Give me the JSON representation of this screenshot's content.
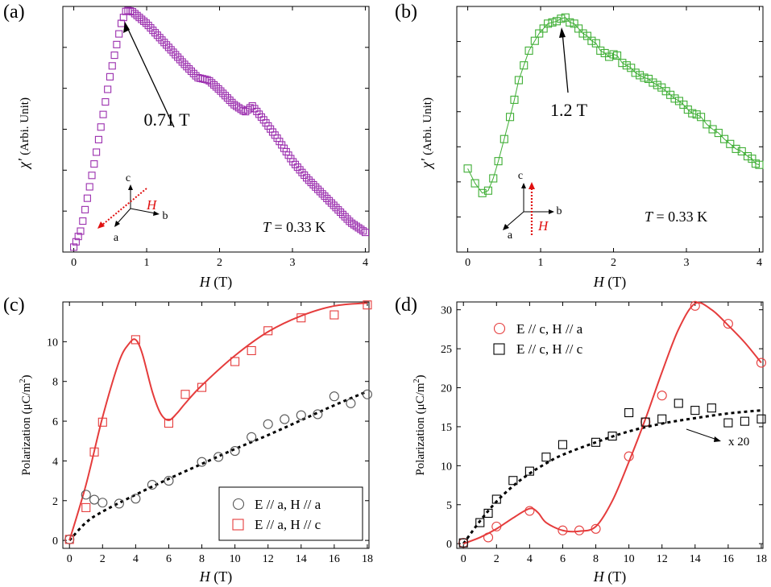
{
  "colors": {
    "purple": "#9b2fae",
    "green": "#3fae35",
    "red": "#e53c3c",
    "black": "#000000",
    "arrow_red": "#e01010"
  },
  "chart_data": [
    {
      "panel": "(a)",
      "type": "scatter",
      "xlabel_letter": "H",
      "xlabel_unit": "(T)",
      "ylabel_sym": "χ'",
      "ylabel_rest": "(Arbi. Unit)",
      "xlim": [
        -0.15,
        4.05
      ],
      "ylim": [
        0.0,
        1.0
      ],
      "xticks": [
        0,
        1,
        2,
        3,
        4
      ],
      "xticklabels": [
        "0",
        "1",
        "2",
        "3",
        "4"
      ],
      "annotation": "0.71 T",
      "temperature_label": "T",
      "temperature_value": "= 0.33 K",
      "axes_labels": {
        "c": "c",
        "b": "b",
        "a": "a",
        "field": "H"
      },
      "color": "#9b2fae",
      "series": {
        "name": "χ'",
        "x_start": 0.0,
        "x_end": 4.0,
        "n_points": 130,
        "curve_x": [
          0.0,
          0.1,
          0.3,
          0.5,
          0.65,
          0.72,
          0.8,
          1.0,
          1.25,
          1.5,
          1.7,
          1.85,
          2.0,
          2.2,
          2.35,
          2.45,
          2.6,
          2.8,
          3.0,
          3.2,
          3.5,
          3.8,
          4.0
        ],
        "curve_y": [
          0.02,
          0.09,
          0.39,
          0.72,
          0.93,
          0.985,
          0.98,
          0.93,
          0.85,
          0.77,
          0.71,
          0.7,
          0.66,
          0.6,
          0.57,
          0.595,
          0.54,
          0.46,
          0.37,
          0.3,
          0.21,
          0.12,
          0.08
        ]
      }
    },
    {
      "panel": "(b)",
      "type": "line",
      "xlabel_letter": "H",
      "xlabel_unit": "(T)",
      "ylabel_sym": "χ'",
      "ylabel_rest": "(Arbi. Unit)",
      "xlim": [
        -0.15,
        4.05
      ],
      "ylim": [
        0.0,
        1.0
      ],
      "xticks": [
        0,
        1,
        2,
        3,
        4
      ],
      "xticklabels": [
        "0",
        "1",
        "2",
        "3",
        "4"
      ],
      "annotation": "1.2 T",
      "temperature_label": "T",
      "temperature_value": "= 0.33 K",
      "axes_labels": {
        "c": "c",
        "b": "b",
        "a": "a",
        "field": "H"
      },
      "color": "#3fae35",
      "series": {
        "name": "χ'",
        "x": [
          0.0,
          0.1,
          0.2,
          0.28,
          0.35,
          0.42,
          0.5,
          0.58,
          0.64,
          0.7,
          0.77,
          0.84,
          0.92,
          0.98,
          1.04,
          1.1,
          1.16,
          1.22,
          1.28,
          1.34,
          1.4,
          1.46,
          1.52,
          1.58,
          1.64,
          1.7,
          1.76,
          1.82,
          1.88,
          1.94,
          2.0,
          2.05,
          2.12,
          2.18,
          2.24,
          2.3,
          2.36,
          2.42,
          2.48,
          2.54,
          2.6,
          2.66,
          2.72,
          2.78,
          2.84,
          2.9,
          2.96,
          3.02,
          3.08,
          3.14,
          3.2,
          3.28,
          3.36,
          3.44,
          3.52,
          3.6,
          3.68,
          3.76,
          3.84,
          3.9,
          3.95,
          4.0
        ],
        "y": [
          0.34,
          0.28,
          0.24,
          0.25,
          0.3,
          0.37,
          0.46,
          0.55,
          0.62,
          0.7,
          0.76,
          0.82,
          0.86,
          0.89,
          0.91,
          0.93,
          0.935,
          0.94,
          0.95,
          0.955,
          0.935,
          0.93,
          0.91,
          0.89,
          0.88,
          0.86,
          0.85,
          0.82,
          0.81,
          0.795,
          0.805,
          0.8,
          0.77,
          0.76,
          0.75,
          0.73,
          0.72,
          0.71,
          0.705,
          0.69,
          0.68,
          0.67,
          0.655,
          0.64,
          0.625,
          0.615,
          0.6,
          0.58,
          0.565,
          0.56,
          0.55,
          0.52,
          0.5,
          0.485,
          0.46,
          0.44,
          0.42,
          0.41,
          0.39,
          0.38,
          0.36,
          0.355
        ]
      }
    },
    {
      "panel": "(c)",
      "type": "scatter",
      "xlabel_letter": "H",
      "xlabel_unit": "(T)",
      "ylabel": "Polarization (μC/m",
      "xlim": [
        -0.4,
        18.1
      ],
      "ylim": [
        -0.4,
        12.0
      ],
      "xticks": [
        0,
        2,
        4,
        6,
        8,
        10,
        12,
        14,
        16,
        18
      ],
      "xticklabels": [
        "0",
        "2",
        "4",
        "6",
        "8",
        "10",
        "12",
        "14",
        "16",
        "18"
      ],
      "yticks": [
        0,
        2,
        4,
        6,
        8,
        10
      ],
      "yticklabels": [
        "0",
        "2",
        "4",
        "6",
        "8",
        "10"
      ],
      "legend_position": "bottom-right",
      "series": [
        {
          "name": "E // a, H // a",
          "marker": "circle",
          "color": "#555555",
          "x": [
            0,
            1,
            1.5,
            2,
            3,
            4,
            5,
            6,
            8,
            9,
            10,
            11,
            12,
            13,
            14,
            15,
            16,
            17,
            18
          ],
          "y": [
            0.05,
            2.3,
            2.05,
            1.9,
            1.85,
            2.1,
            2.8,
            3.0,
            3.95,
            4.2,
            4.5,
            5.2,
            5.85,
            6.1,
            6.3,
            6.35,
            7.25,
            6.9,
            7.35
          ],
          "fit_label": "dotted",
          "fit_x": [
            0,
            1,
            2,
            4,
            6,
            8,
            10,
            12,
            14,
            16,
            18
          ],
          "fit_y": [
            0,
            0.9,
            1.45,
            2.3,
            3.1,
            3.85,
            4.6,
            5.3,
            6.05,
            6.8,
            7.5
          ]
        },
        {
          "name": "E // a, H // c",
          "marker": "square",
          "color": "#e53c3c",
          "x": [
            0,
            1,
            1.5,
            2,
            4,
            6,
            7,
            8,
            10,
            11,
            12,
            14,
            16,
            18
          ],
          "y": [
            0.05,
            1.65,
            4.45,
            5.95,
            10.1,
            5.9,
            7.35,
            7.7,
            9.0,
            9.55,
            10.55,
            11.2,
            11.35,
            11.85
          ],
          "fit_x": [
            0,
            1,
            2,
            3,
            3.6,
            4,
            4.4,
            5,
            5.5,
            6,
            6.5,
            7,
            8,
            10,
            12,
            14,
            16,
            18
          ],
          "fit_y": [
            0,
            2.8,
            6.2,
            9.0,
            9.9,
            10.1,
            9.4,
            7.5,
            6.4,
            6.05,
            6.4,
            6.9,
            7.8,
            9.3,
            10.5,
            11.3,
            11.8,
            11.95
          ]
        }
      ]
    },
    {
      "panel": "(d)",
      "type": "scatter",
      "xlabel_letter": "H",
      "xlabel_unit": "(T)",
      "ylabel": "Polarization (μC/m",
      "xlim": [
        -0.4,
        18.1
      ],
      "ylim": [
        -0.6,
        31.0
      ],
      "xticks": [
        0,
        2,
        4,
        6,
        8,
        10,
        12,
        14,
        16,
        18
      ],
      "xticklabels": [
        "0",
        "2",
        "4",
        "6",
        "8",
        "10",
        "12",
        "14",
        "16",
        "18"
      ],
      "yticks": [
        0,
        5,
        10,
        15,
        20,
        25,
        30
      ],
      "yticklabels": [
        "0",
        "5",
        "10",
        "15",
        "20",
        "25",
        "30"
      ],
      "legend_position": "top-left",
      "annotation": "x 20",
      "series": [
        {
          "name": "E // c, H // a",
          "marker": "circle",
          "color": "#e53c3c",
          "x": [
            0,
            1.5,
            2,
            4,
            6,
            7,
            8,
            10,
            11,
            12,
            14,
            16,
            18
          ],
          "y": [
            0.1,
            0.8,
            2.2,
            4.2,
            1.7,
            1.7,
            1.9,
            11.2,
            15.6,
            19.0,
            30.5,
            28.2,
            23.2
          ],
          "fit_x": [
            0,
            1,
            2,
            3,
            4,
            4.5,
            5,
            6,
            7,
            8,
            9,
            10,
            11,
            12,
            13,
            14,
            15,
            16,
            17,
            18
          ],
          "fit_y": [
            0,
            0.8,
            1.9,
            3.3,
            4.5,
            4.0,
            2.7,
            1.7,
            1.6,
            2.2,
            5.5,
            10.5,
            16.0,
            22.0,
            27.5,
            30.8,
            30.0,
            28.0,
            25.8,
            23.2
          ]
        },
        {
          "name": "E // c, H // c",
          "marker": "square",
          "color": "#000000",
          "x": [
            0,
            1,
            1.5,
            2,
            3,
            4,
            5,
            6,
            8,
            9,
            10,
            11,
            12,
            13,
            14,
            15,
            16,
            17,
            18
          ],
          "y": [
            0.1,
            2.7,
            3.9,
            5.7,
            8.1,
            9.3,
            11.1,
            12.7,
            13.0,
            13.8,
            16.8,
            15.6,
            16.0,
            18.0,
            17.1,
            17.4,
            15.5,
            15.7,
            16.0
          ],
          "fit_x": [
            0,
            1,
            2,
            3,
            4,
            5,
            6,
            8,
            10,
            12,
            14,
            16,
            18
          ],
          "fit_y": [
            0,
            2.9,
            5.4,
            7.4,
            9.0,
            10.3,
            11.4,
            13.0,
            14.4,
            15.4,
            16.1,
            16.7,
            17.1
          ]
        }
      ]
    }
  ]
}
